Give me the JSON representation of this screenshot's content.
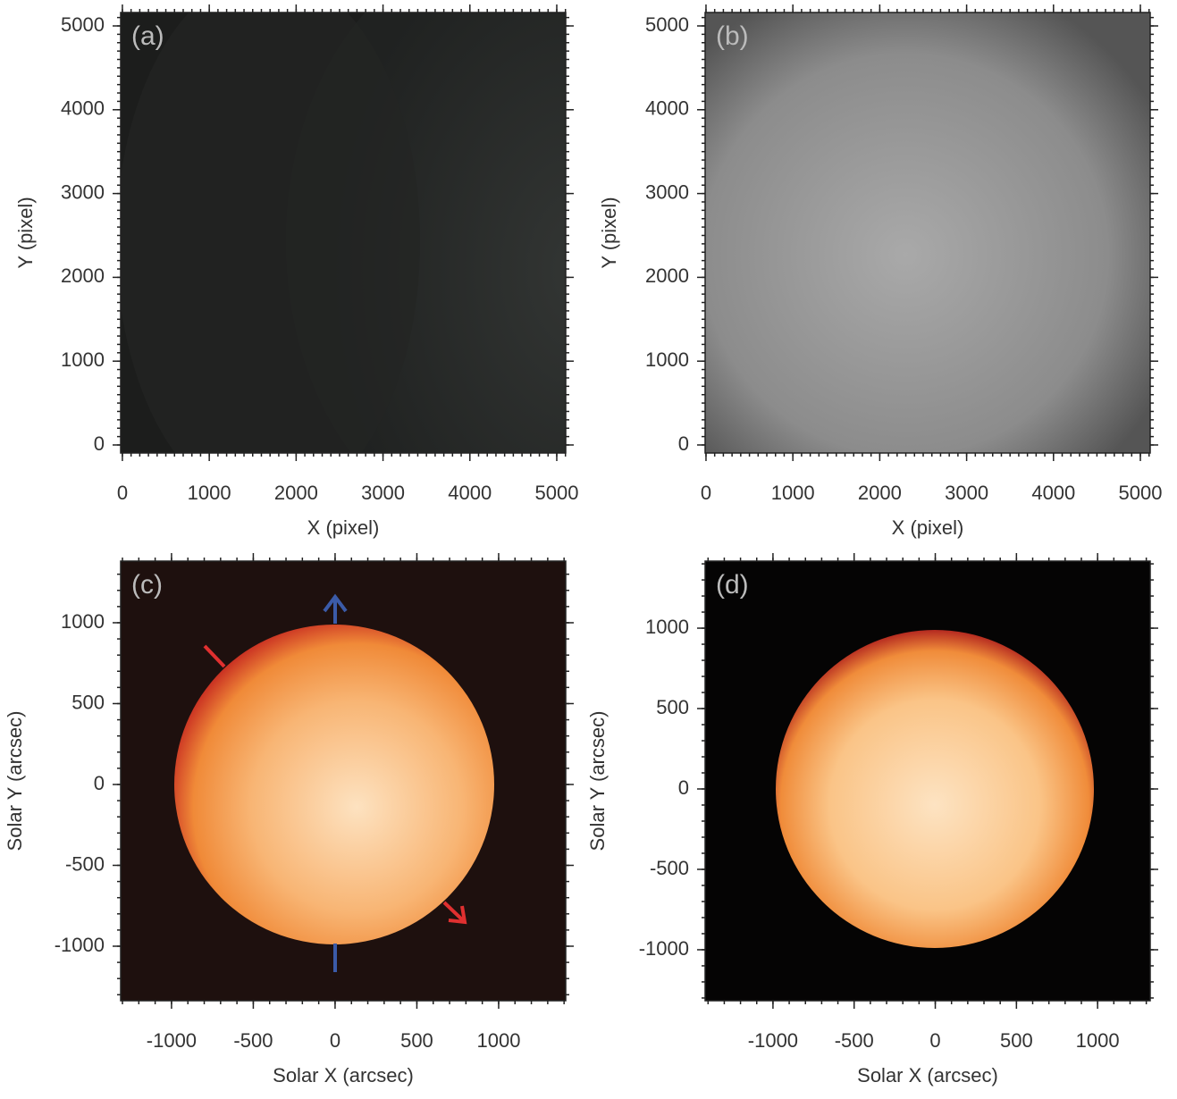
{
  "chart_data": [
    {
      "type": "image",
      "label": "(a)",
      "xlabel": "X (pixel)",
      "ylabel": "Y (pixel)",
      "xlim": [
        -20,
        5103
      ],
      "ylim": [
        -96,
        5160
      ],
      "xticks": [
        0,
        1000,
        2000,
        3000,
        4000,
        5000
      ],
      "yticks": [
        0,
        1000,
        2000,
        3000,
        4000,
        5000
      ]
    },
    {
      "type": "image",
      "label": "(b)",
      "xlabel": "X (pixel)",
      "ylabel": "Y (pixel)",
      "xlim": [
        -10,
        5113
      ],
      "ylim": [
        -96,
        5160
      ],
      "xticks": [
        0,
        1000,
        2000,
        3000,
        4000,
        5000
      ],
      "yticks": [
        0,
        1000,
        2000,
        3000,
        4000,
        5000
      ]
    },
    {
      "type": "image",
      "label": "(c)",
      "xlabel": "Solar X (arcsec)",
      "ylabel": "Solar Y (arcsec)",
      "xlim": [
        -1311,
        1410
      ],
      "ylim": [
        -1337,
        1381
      ],
      "xticks": [
        -1000,
        -500,
        0,
        500,
        1000
      ],
      "yticks": [
        -1000,
        -500,
        0,
        500,
        1000
      ]
    },
    {
      "type": "image",
      "label": "(d)",
      "xlabel": "Solar X (arcsec)",
      "ylabel": "Solar Y (arcsec)",
      "xlim": [
        -1418,
        1324
      ],
      "ylim": [
        -1317,
        1417
      ],
      "xticks": [
        -1000,
        -500,
        0,
        500,
        1000
      ],
      "yticks": [
        -1000,
        -500,
        0,
        500,
        1000
      ]
    }
  ]
}
